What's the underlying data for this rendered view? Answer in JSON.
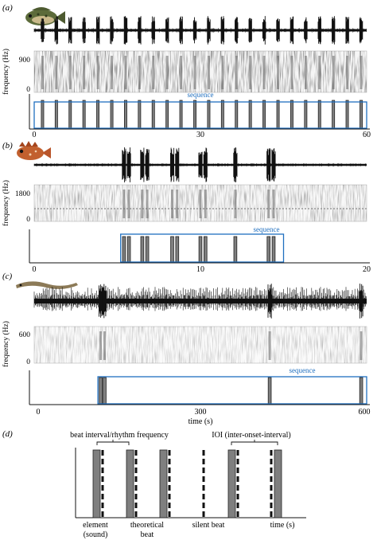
{
  "figure": {
    "panels": [
      {
        "id": "a",
        "label": "(a)",
        "fish_icon": "grouper-fish-icon",
        "spectro_ylabel": "frequency (Hz)",
        "spectro_ticks": [
          "900",
          "0"
        ],
        "sequence_label": "sequence",
        "axis_ticks": [
          "0",
          "30",
          "60"
        ],
        "xlim": [
          0,
          60
        ],
        "pulses": [
          1.5,
          4,
          6.5,
          9,
          11.5,
          14,
          16.5,
          19,
          21.5,
          24,
          26.5,
          29,
          31.5,
          34,
          36.5,
          39,
          41.5,
          44,
          46.5,
          49,
          51.5,
          54,
          56.5,
          59
        ],
        "pulse_width": 0.5,
        "sequence_range": [
          0,
          60
        ]
      },
      {
        "id": "b",
        "label": "(b)",
        "fish_icon": "scorpionfish-icon",
        "spectro_ylabel": "frequency (Hz)",
        "spectro_ticks": [
          "1800",
          "0"
        ],
        "sequence_label": "sequence",
        "axis_ticks": [
          "0",
          "10",
          "20"
        ],
        "xlim": [
          0,
          20
        ],
        "pulses": [
          5.4,
          5.7,
          6.5,
          6.8,
          8.3,
          8.6,
          10.0,
          10.3,
          12.1,
          14.1,
          14.4
        ],
        "pulse_width": 0.2,
        "sequence_range": [
          5.2,
          15.0
        ]
      },
      {
        "id": "c",
        "label": "(c)",
        "fish_icon": "eel-icon",
        "spectro_ylabel": "frequency (Hz)",
        "spectro_ticks": [
          "600",
          "0"
        ],
        "sequence_label": "sequence",
        "axis_ticks": [
          "0",
          "300",
          "600"
        ],
        "xlabel": "time (s)",
        "xlim": [
          0,
          600
        ],
        "pulses": [
          120,
          127,
          425,
          590
        ],
        "pulse_width": 6,
        "sequence_range": [
          115,
          600
        ]
      }
    ],
    "diagram": {
      "label": "(d)",
      "top_label_left": "beat interval/rhythm frequency",
      "top_label_right": "IOI (inter-onset-interval)",
      "bottom_label_1": "element",
      "bottom_label_1b": "(sound)",
      "bottom_label_2": "theoretical",
      "bottom_label_2b": "beat",
      "bottom_label_3": "silent beat",
      "bottom_label_4": "time (s)"
    }
  }
}
